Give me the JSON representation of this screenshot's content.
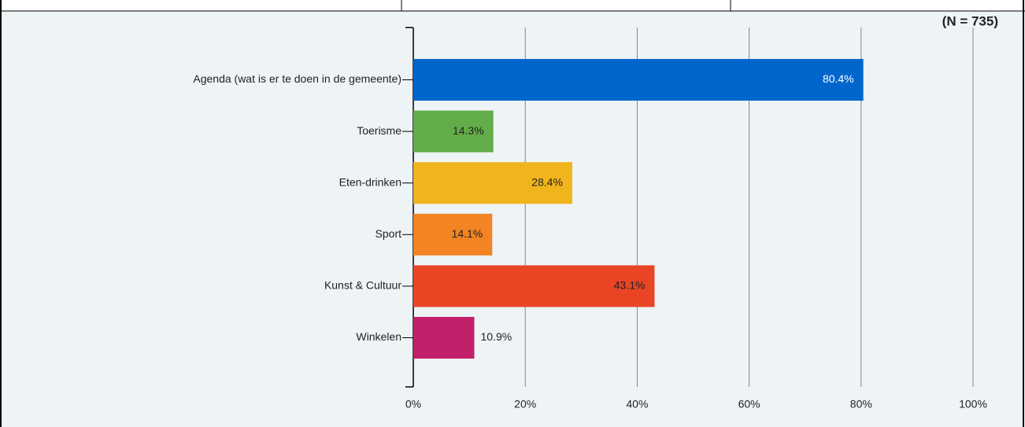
{
  "chart_data": {
    "type": "hbar",
    "note": "(N = 735)",
    "categories": [
      "Agenda (wat is er te doen in de gemeente)",
      "Toerisme",
      "Eten-drinken",
      "Sport",
      "Kunst & Cultuur",
      "Winkelen"
    ],
    "values": [
      80.4,
      14.3,
      28.4,
      14.1,
      43.1,
      10.9
    ],
    "value_labels": [
      "80.4%",
      "14.3%",
      "28.4%",
      "14.1%",
      "43.1%",
      "10.9%"
    ],
    "colors": [
      "#0066cc",
      "#62ad47",
      "#f0b41d",
      "#f28424",
      "#e94525",
      "#c21f6a"
    ],
    "xlim": [
      0,
      100
    ],
    "xticks": [
      {
        "value": 0,
        "label": "0%"
      },
      {
        "value": 20,
        "label": "20%"
      },
      {
        "value": 40,
        "label": "40%"
      },
      {
        "value": 60,
        "label": "60%"
      },
      {
        "value": 80,
        "label": "80%"
      },
      {
        "value": 100,
        "label": "100%"
      }
    ],
    "grid": true
  }
}
